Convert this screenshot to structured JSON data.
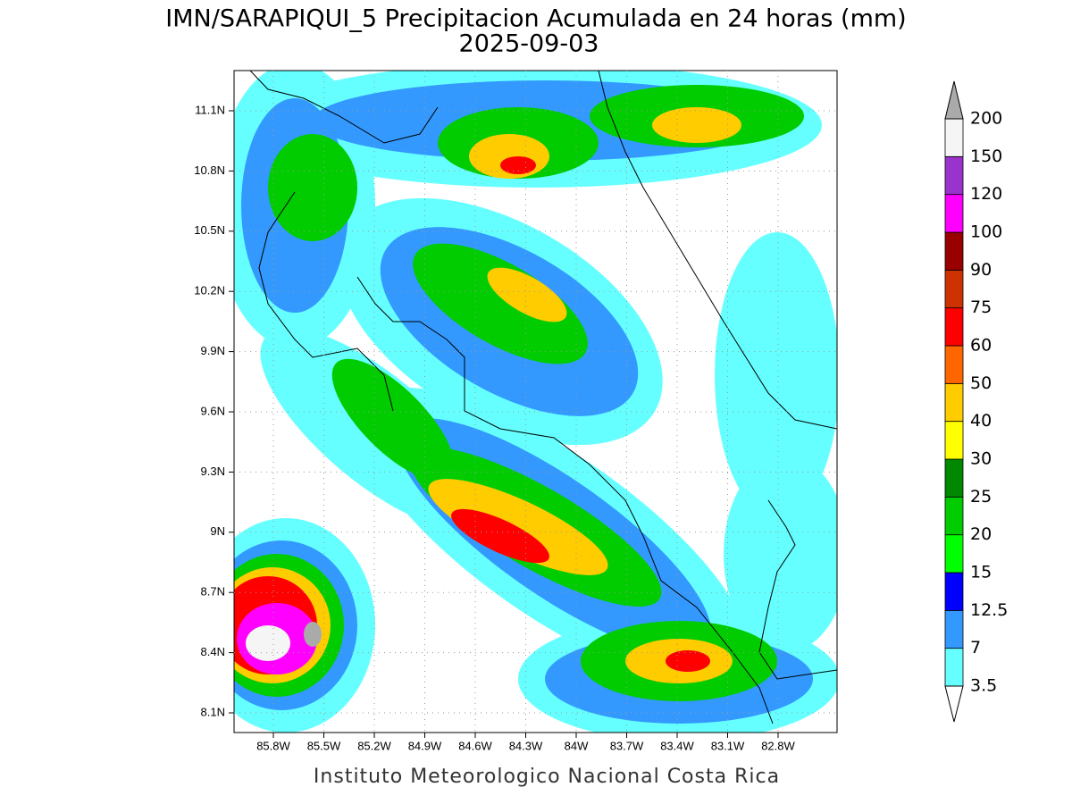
{
  "title": "IMN/SARAPIQUI_5 Precipitacion Acumulada en 24 horas (mm)",
  "subtitle": "2025-09-03",
  "footer": "Instituto Meteorologico Nacional Costa Rica",
  "lat_labels": [
    "11.1N",
    "10.8N",
    "10.5N",
    "10.2N",
    "9.9N",
    "9.6N",
    "9.3N",
    "9N",
    "8.7N",
    "8.4N",
    "8.1N"
  ],
  "lon_labels": [
    "85.8W",
    "85.5W",
    "85.2W",
    "84.9W",
    "84.6W",
    "84.3W",
    "84W",
    "83.7W",
    "83.4W",
    "83.1W",
    "82.8W"
  ],
  "colorbar": {
    "levels": [
      3.5,
      7,
      12.5,
      15,
      20,
      25,
      30,
      40,
      50,
      60,
      75,
      90,
      100,
      120,
      150,
      200
    ],
    "colors": [
      "#66ffff",
      "#3399ff",
      "#0000ff",
      "#00ff00",
      "#00cc00",
      "#008800",
      "#ffff00",
      "#ffcc00",
      "#ff6600",
      "#ff0000",
      "#cc3300",
      "#990000",
      "#ff00ff",
      "#9933cc",
      "#f5f5f5"
    ],
    "below_color": "#ffffff",
    "above_color": "#aaaaaa"
  }
}
